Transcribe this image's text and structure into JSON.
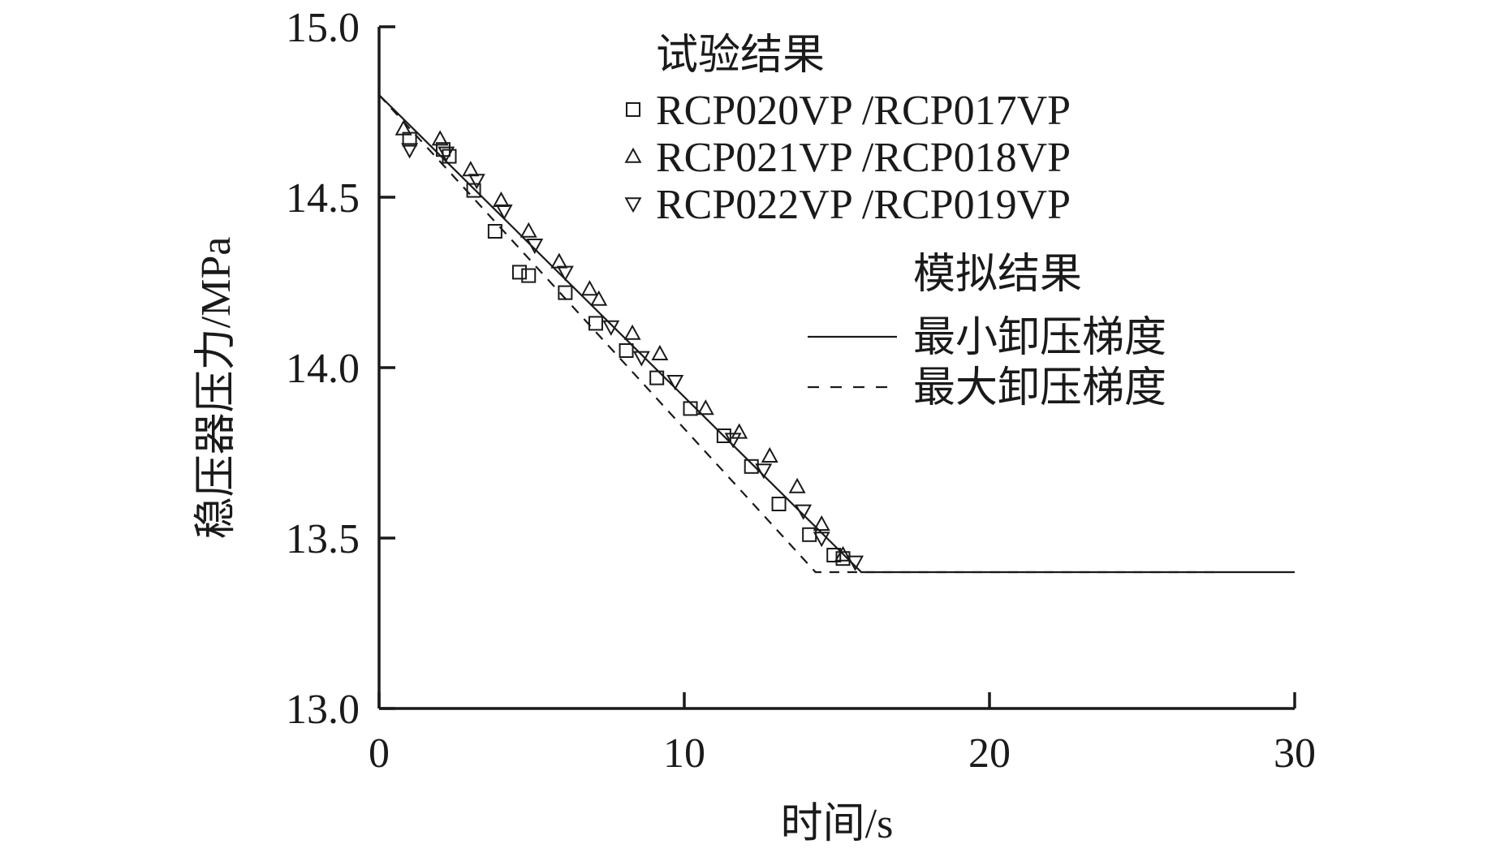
{
  "chart_data": {
    "type": "scatter",
    "xlabel": "时间/s",
    "ylabel": "稳压器压力/MPa",
    "xlim": [
      0,
      30
    ],
    "ylim": [
      13.0,
      15.0
    ],
    "xticks": [
      "0",
      "10",
      "20",
      "30"
    ],
    "yticks": [
      "13.0",
      "13.5",
      "14.0",
      "14.5",
      "15.0"
    ],
    "grid": false,
    "legend_position": "top-right",
    "legend": {
      "experiment_title": "试验结果",
      "simulation_title": "模拟结果"
    },
    "series": [
      {
        "name": "RCP020VP /RCP017VP",
        "kind": "scatter",
        "marker": "square",
        "points": [
          [
            1.0,
            14.67
          ],
          [
            2.1,
            14.64
          ],
          [
            2.3,
            14.62
          ],
          [
            3.1,
            14.52
          ],
          [
            3.8,
            14.4
          ],
          [
            4.6,
            14.28
          ],
          [
            4.9,
            14.27
          ],
          [
            6.1,
            14.22
          ],
          [
            7.1,
            14.13
          ],
          [
            8.1,
            14.05
          ],
          [
            9.1,
            13.97
          ],
          [
            10.2,
            13.88
          ],
          [
            11.3,
            13.8
          ],
          [
            12.2,
            13.71
          ],
          [
            13.1,
            13.6
          ],
          [
            14.1,
            13.51
          ],
          [
            14.9,
            13.45
          ],
          [
            15.2,
            13.44
          ]
        ]
      },
      {
        "name": "RCP021VP /RCP018VP",
        "kind": "scatter",
        "marker": "triangle-up",
        "points": [
          [
            0.8,
            14.7
          ],
          [
            2.0,
            14.67
          ],
          [
            3.0,
            14.58
          ],
          [
            4.0,
            14.49
          ],
          [
            4.9,
            14.4
          ],
          [
            5.9,
            14.31
          ],
          [
            6.9,
            14.23
          ],
          [
            7.2,
            14.2
          ],
          [
            8.3,
            14.1
          ],
          [
            9.2,
            14.04
          ],
          [
            10.7,
            13.88
          ],
          [
            11.8,
            13.81
          ],
          [
            12.8,
            13.74
          ],
          [
            13.7,
            13.65
          ],
          [
            14.5,
            13.54
          ],
          [
            15.2,
            13.45
          ]
        ]
      },
      {
        "name": "RCP022VP /RCP019VP",
        "kind": "scatter",
        "marker": "triangle-down",
        "points": [
          [
            1.0,
            14.64
          ],
          [
            2.2,
            14.63
          ],
          [
            3.2,
            14.55
          ],
          [
            4.1,
            14.46
          ],
          [
            5.1,
            14.36
          ],
          [
            6.1,
            14.28
          ],
          [
            7.6,
            14.12
          ],
          [
            8.6,
            14.03
          ],
          [
            9.7,
            13.96
          ],
          [
            11.6,
            13.79
          ],
          [
            12.6,
            13.7
          ],
          [
            13.9,
            13.58
          ],
          [
            14.5,
            13.5
          ],
          [
            15.6,
            13.43
          ]
        ]
      },
      {
        "name": "最小卸压梯度",
        "kind": "line",
        "style": "solid",
        "points": [
          [
            0,
            14.8
          ],
          [
            15.8,
            13.4
          ],
          [
            30,
            13.4
          ]
        ]
      },
      {
        "name": "最大卸压梯度",
        "kind": "line",
        "style": "dashed",
        "points": [
          [
            0,
            14.8
          ],
          [
            14.3,
            13.4
          ],
          [
            27.5,
            13.4
          ]
        ]
      }
    ]
  }
}
